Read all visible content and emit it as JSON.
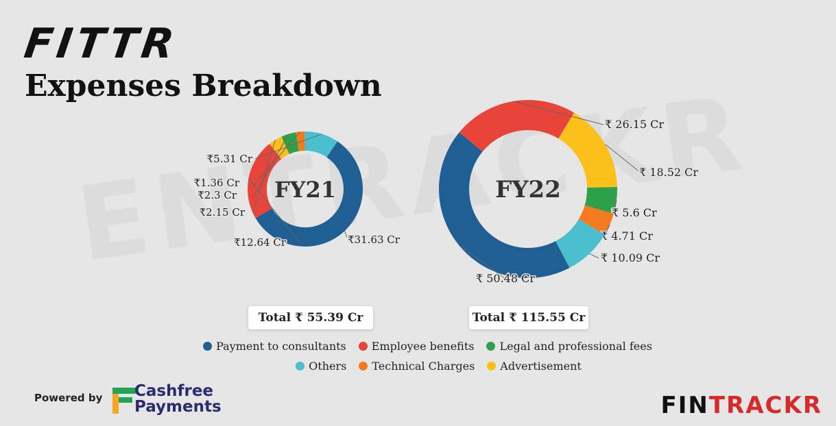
{
  "brand": {
    "logo": "FITTR",
    "watermark": "ENTRACKR"
  },
  "title": "Expenses Breakdown",
  "colors": {
    "Payment to consultants": "#1f5f94",
    "Employee benefits": "#e8443a",
    "Legal and professional fees": "#2ea04a",
    "Others": "#4cbfcf",
    "Technical Charges": "#f47a1f",
    "Advertisement": "#fcc01a"
  },
  "chart_data": [
    {
      "type": "pie",
      "center_label": "FY21",
      "total_label": "Total ₹ 55.39 Cr",
      "slices": [
        {
          "name": "Payment to consultants",
          "value": 31.63,
          "label": "₹31.63 Cr"
        },
        {
          "name": "Employee benefits",
          "value": 12.64,
          "label": "₹12.64 Cr"
        },
        {
          "name": "Advertisement",
          "value": 2.15,
          "label": "₹2.15 Cr"
        },
        {
          "name": "Legal and professional fees",
          "value": 2.3,
          "label": "₹2.3 Cr"
        },
        {
          "name": "Technical Charges",
          "value": 1.36,
          "label": "₹1.36 Cr"
        },
        {
          "name": "Others",
          "value": 5.31,
          "label": "₹5.31 Cr"
        }
      ]
    },
    {
      "type": "pie",
      "center_label": "FY22",
      "total_label": "Total ₹ 115.55 Cr",
      "slices": [
        {
          "name": "Advertisement",
          "value": 18.52,
          "label": "₹ 18.52 Cr"
        },
        {
          "name": "Legal and professional fees",
          "value": 5.6,
          "label": "₹ 5.6 Cr"
        },
        {
          "name": "Technical Charges",
          "value": 4.71,
          "label": "₹ 4.71 Cr"
        },
        {
          "name": "Others",
          "value": 10.09,
          "label": "₹ 10.09 Cr"
        },
        {
          "name": "Payment to consultants",
          "value": 50.48,
          "label": "₹ 50.48 Cr"
        },
        {
          "name": "Employee benefits",
          "value": 26.15,
          "label": "₹ 26.15 Cr"
        }
      ]
    }
  ],
  "legend": {
    "row1": [
      "Payment to consultants",
      "Employee benefits",
      "Legal and professional fees"
    ],
    "row2": [
      "Others",
      "Technical Charges",
      "Advertisement"
    ]
  },
  "footer": {
    "powered_by": "Powered by",
    "partner_line1": "Cashfree",
    "partner_line2": "Payments",
    "publisher_part1": "FIN",
    "publisher_part2": "TRACKR"
  }
}
